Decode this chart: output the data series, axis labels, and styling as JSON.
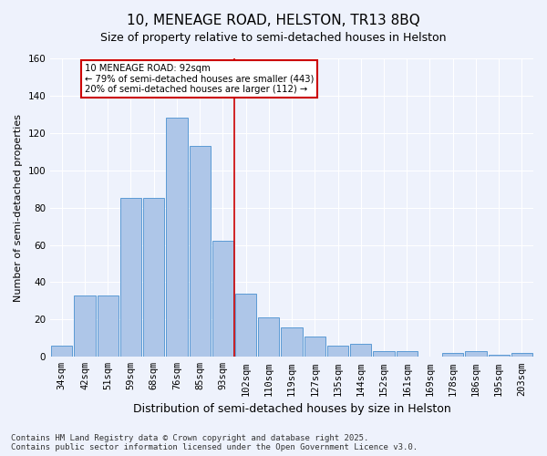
{
  "title": "10, MENEAGE ROAD, HELSTON, TR13 8BQ",
  "subtitle": "Size of property relative to semi-detached houses in Helston",
  "xlabel": "Distribution of semi-detached houses by size in Helston",
  "ylabel": "Number of semi-detached properties",
  "categories": [
    "34sqm",
    "42sqm",
    "51sqm",
    "59sqm",
    "68sqm",
    "76sqm",
    "85sqm",
    "93sqm",
    "102sqm",
    "110sqm",
    "119sqm",
    "127sqm",
    "135sqm",
    "144sqm",
    "152sqm",
    "161sqm",
    "169sqm",
    "178sqm",
    "186sqm",
    "195sqm",
    "203sqm"
  ],
  "values": [
    6,
    33,
    33,
    85,
    85,
    128,
    113,
    62,
    34,
    21,
    16,
    11,
    6,
    7,
    3,
    3,
    0,
    2,
    3,
    1,
    2
  ],
  "bar_color": "#aec6e8",
  "bar_edge_color": "#5b9bd5",
  "marker_label": "10 MENEAGE ROAD: 92sqm",
  "annotation_line1": "← 79% of semi-detached houses are smaller (443)",
  "annotation_line2": "20% of semi-detached houses are larger (112) →",
  "annotation_box_color": "#ffffff",
  "annotation_box_edge": "#cc0000",
  "vline_color": "#cc0000",
  "vline_x": 7.5,
  "ylim": [
    0,
    160
  ],
  "yticks": [
    0,
    20,
    40,
    60,
    80,
    100,
    120,
    140,
    160
  ],
  "background_color": "#eef2fc",
  "grid_color": "#ffffff",
  "footer": "Contains HM Land Registry data © Crown copyright and database right 2025.\nContains public sector information licensed under the Open Government Licence v3.0.",
  "title_fontsize": 11,
  "subtitle_fontsize": 9,
  "xlabel_fontsize": 9,
  "ylabel_fontsize": 8,
  "tick_fontsize": 7.5,
  "footer_fontsize": 6.5
}
